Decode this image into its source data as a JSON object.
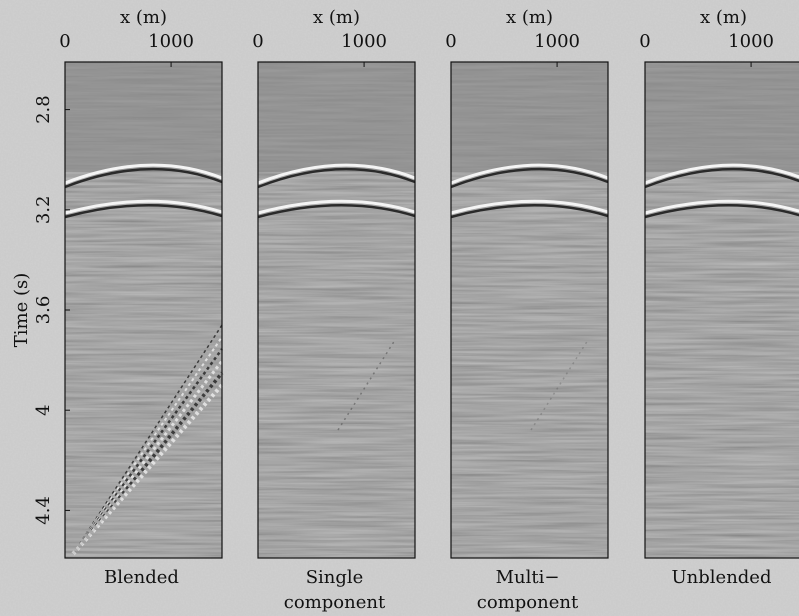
{
  "chart_data": [
    {
      "type": "image",
      "xlabel": "x (m)",
      "xlim": [
        0,
        1480
      ],
      "xticks": [
        0,
        1000
      ],
      "ylabel": "Time (s)",
      "ylim": [
        2.61,
        4.59
      ],
      "y_inverted": true,
      "yticks": [
        2.8,
        3.2,
        3.6,
        4,
        4.4
      ],
      "caption": [
        "Blended"
      ]
    },
    {
      "type": "image",
      "xlabel": "x (m)",
      "xlim": [
        0,
        1480
      ],
      "xticks": [
        0,
        1000
      ],
      "ylim": [
        2.61,
        4.59
      ],
      "y_inverted": true,
      "caption": [
        "Single",
        "component"
      ]
    },
    {
      "type": "image",
      "xlabel": "x (m)",
      "xlim": [
        0,
        1480
      ],
      "xticks": [
        0,
        1000
      ],
      "ylim": [
        2.61,
        4.59
      ],
      "y_inverted": true,
      "caption": [
        "Multi−",
        "component"
      ]
    },
    {
      "type": "image",
      "xlabel": "x (m)",
      "xlim": [
        0,
        1480
      ],
      "xticks": [
        0,
        1000
      ],
      "ylim": [
        2.61,
        4.59
      ],
      "y_inverted": true,
      "caption": [
        "Unblended"
      ]
    }
  ]
}
